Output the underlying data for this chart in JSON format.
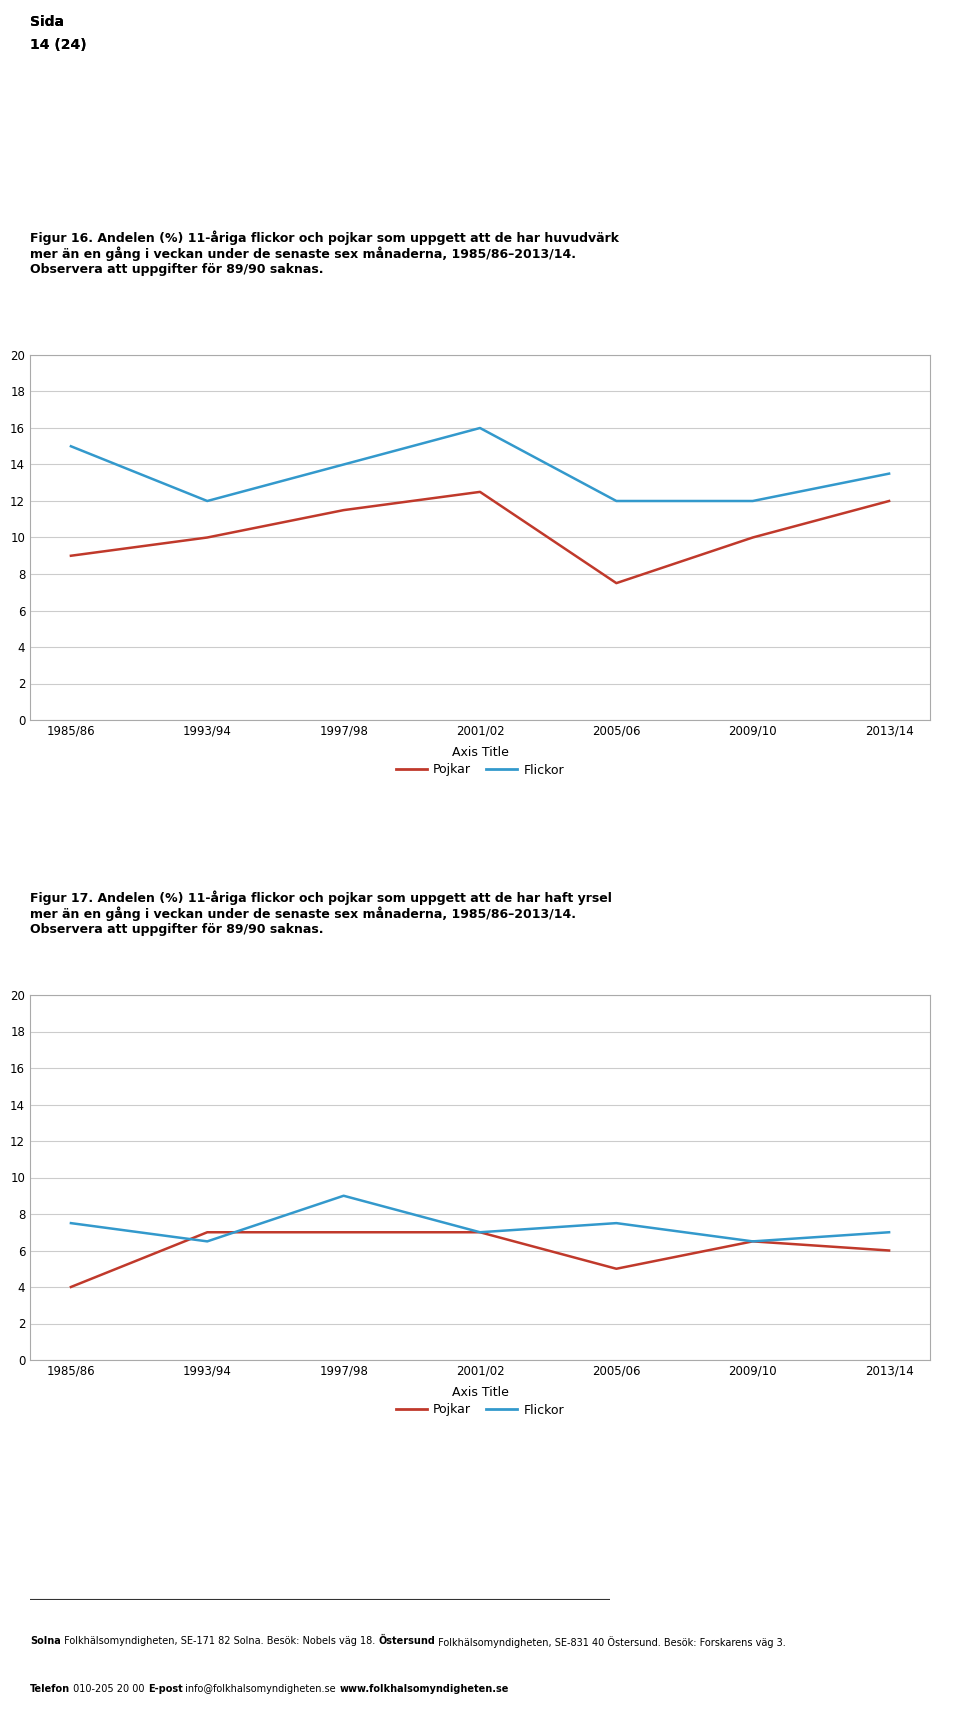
{
  "page_header": "Sida",
  "page_number": "14 (24)",
  "fig16_title_line1": "Figur 16. Andelen (%) 11-åriga flickor och pojkar som uppgett att de har huvudvärk",
  "fig16_title_line2": "mer än en gång i veckan under de senaste sex månaderna, 1985/86–2013/14.",
  "fig16_title_line3": "Observera att uppgifter för 89/90 saknas.",
  "fig17_title_line1": "Figur 17. Andelen (%) 11-åriga flickor och pojkar som uppgett att de har haft yrsel",
  "fig17_title_line2": "mer än en gång i veckan under de senaste sex månaderna, 1985/86–2013/14.",
  "fig17_title_line3": "Observera att uppgifter för 89/90 saknas.",
  "x_labels": [
    "1985/86",
    "1993/94",
    "1997/98",
    "2001/02",
    "2005/06",
    "2009/10",
    "2013/14"
  ],
  "x_positions": [
    0,
    1,
    2,
    3,
    4,
    5,
    6
  ],
  "fig16_pojkar": [
    9.0,
    10.0,
    11.5,
    12.5,
    7.5,
    10.0,
    12.0
  ],
  "fig16_flickor": [
    15.0,
    12.0,
    14.0,
    16.0,
    12.0,
    12.0,
    13.5
  ],
  "fig17_pojkar": [
    4.0,
    7.0,
    7.0,
    7.0,
    5.0,
    6.5,
    6.0
  ],
  "fig17_flickor": [
    7.5,
    6.5,
    9.0,
    7.0,
    7.5,
    6.5,
    7.0
  ],
  "pojkar_color": "#c0392b",
  "flickor_color": "#3399cc",
  "ylim": [
    0,
    20
  ],
  "yticks": [
    0,
    2,
    4,
    6,
    8,
    10,
    12,
    14,
    16,
    18,
    20
  ],
  "axis_title": "Axis Title",
  "grid_color": "#cccccc",
  "spine_color": "#aaaaaa",
  "legend_pojkar": "Pojkar",
  "legend_flickor": "Flickor",
  "footer_bold1": "Solna",
  "footer_reg1": " Folkhälsomyndigheten, SE-171 82 Solna. Besök: Nobels väg 18. ",
  "footer_bold2": "Östersund",
  "footer_reg2": " Folkhälsomyndigheten, SE-831 40 Östersund. Besök: Forskarens väg 3.",
  "footer2_bold1": "Telefon",
  "footer2_reg1": " 010-205 20 00 ",
  "footer2_bold2": "E-post",
  "footer2_reg2": " info@folkhalsomyndigheten.se ",
  "footer2_bold3": "www.folkhalsomyndigheten.se",
  "background_color": "#ffffff"
}
